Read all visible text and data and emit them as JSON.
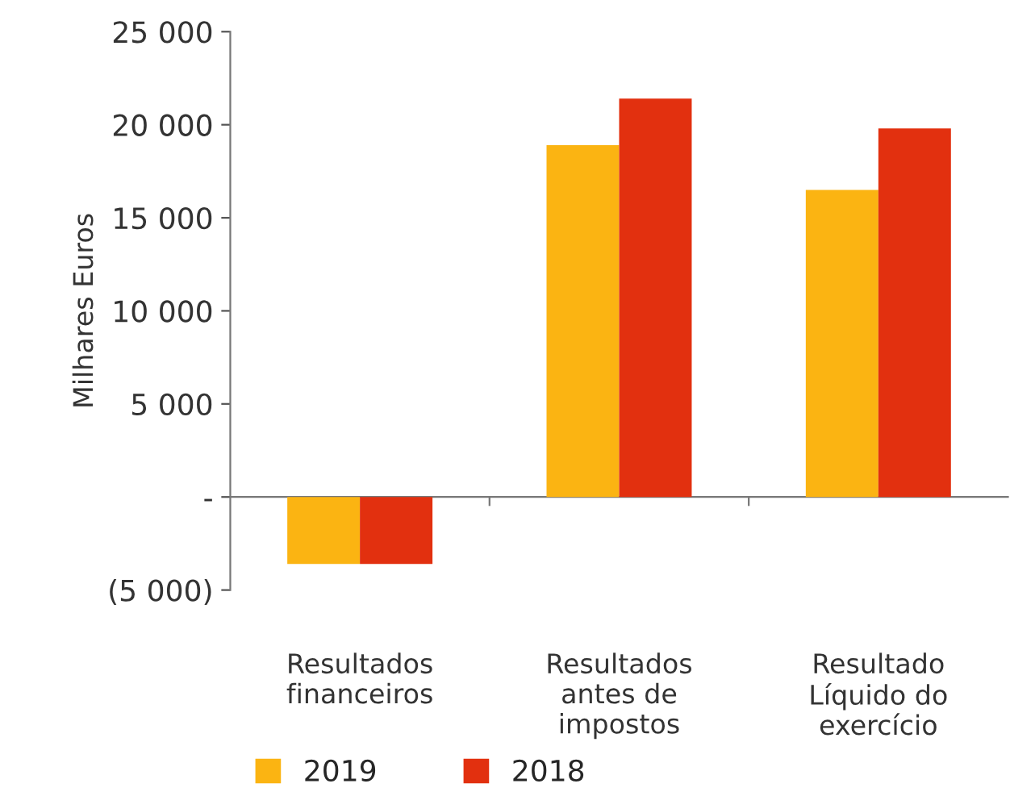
{
  "chart_data": {
    "type": "bar",
    "ylabel": "Milhares Euros",
    "categories": [
      "Resultados\nfinanceiros",
      "Resultados\nantes de\nimpostos",
      "Resultado\nLíquido do\nexercício"
    ],
    "series": [
      {
        "name": "2019",
        "color": "#fbb412",
        "values": [
          -3600,
          18900,
          16500
        ]
      },
      {
        "name": "2018",
        "color": "#e2300f",
        "values": [
          -3600,
          21400,
          19800
        ]
      }
    ],
    "ylim": [
      -5000,
      25000
    ],
    "yticks": [
      {
        "value": -5000,
        "label": "(5 000)"
      },
      {
        "value": 0,
        "label": "-"
      },
      {
        "value": 5000,
        "label": "5 000"
      },
      {
        "value": 10000,
        "label": "10 000"
      },
      {
        "value": 15000,
        "label": "15 000"
      },
      {
        "value": 20000,
        "label": "20 000"
      },
      {
        "value": 25000,
        "label": "25 000"
      }
    ],
    "legend": "bottom left"
  }
}
